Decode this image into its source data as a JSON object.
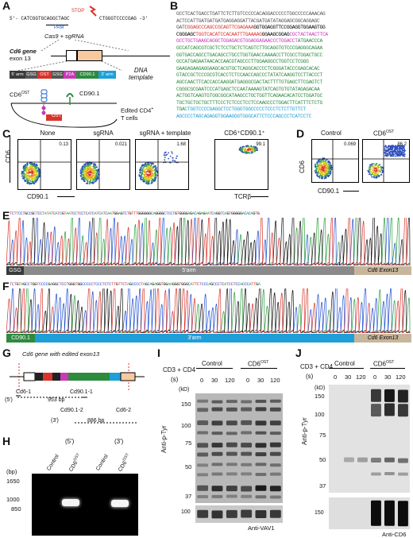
{
  "panels": {
    "A": "A",
    "B": "B",
    "C": "C",
    "D": "D",
    "E": "E",
    "F": "F",
    "G": "G",
    "H": "H",
    "I": "I",
    "J": "J"
  },
  "panelA": {
    "top_seq_left": "5'- CATCGGTGCAGGCTAGC",
    "top_seq_right": "CTGGGTCCCCGAG -3'",
    "stop": "STOP",
    "pam": "PAM",
    "cas9": "Cas9 + sgRNA",
    "gene_label_1": "Cd6 gene",
    "gene_label_2": "exon 13",
    "template_parts": [
      "5' arm",
      "GSG",
      "OST",
      "GSG",
      "P2A",
      "CD90.1",
      "3' arm"
    ],
    "dna_template": [
      "DNA",
      "template"
    ],
    "cd6ost": "CD6",
    "cd6ost_sup": "OST",
    "cd901": "CD90.1",
    "ost": "OST",
    "edited_1": "Edited CD4",
    "edited_sup": "+",
    "edited_2": "T cells"
  },
  "panelB": {
    "lines": [
      [
        {
          "t": "GCCTCACTGACCTGATTCTCTTGTCCCCCACAGGACCCCCTGGCCCCCAAACAG",
          "c": "#555"
        }
      ],
      [
        {
          "t": "ACTCCATTGATGATGATGAGGAGGATTACGATGATATAGGAGCGGCAGGAGC",
          "c": "#555"
        },
        {
          "t": "",
          "c": "#000"
        }
      ],
      [
        {
          "t": "GATC",
          "c": "#555"
        },
        {
          "t": "GGAGCCCAGCCGCAGTTCGAGAAA",
          "c": "#d8342c"
        },
        {
          "t": "GGTGGAGGTTCCGGAGGTGGAAGTGG",
          "c": "#000"
        }
      ],
      [
        {
          "t": "CGGGAGC",
          "c": "#000"
        },
        {
          "t": "TGGTCACATCCACAATTTGAAAAG",
          "c": "#d8342c"
        },
        {
          "t": "GGAAGCGGAG",
          "c": "#000"
        },
        {
          "t": "CGCTACTAACTTCA",
          "c": "#c83ab8"
        }
      ],
      [
        {
          "t": "GCCTGCTGAAGCAGGCTGGAGACGTGGAGGAGAACCCTGGACCT",
          "c": "#c83ab8"
        },
        {
          "t": "ATGAACCCA",
          "c": "#2e8b3e"
        }
      ],
      [
        {
          "t": "GCCATCAGCGTCGCTCTCCTGCTCTCAGTCTTGCAGGTGTCCCGAGGGCAGAA",
          "c": "#2e8b3e"
        }
      ],
      [
        {
          "t": "GGTGACCAGCCTGACAGCCTGCCTGGTGAACCAAAACCTTCGCCTGGACTGCC",
          "c": "#2e8b3e"
        }
      ],
      [
        {
          "t": "GCCATGAGAATAACACCAACGTAGCCCTTGGAAGGCCTGGTCCTCGGG",
          "c": "#2e8b3e"
        }
      ],
      [
        {
          "t": "GAAGAGAAGAGGAAGCACGTGCTCAGGCACCCCTCGGGATACCCGAGCACAC",
          "c": "#2e8b3e"
        }
      ],
      [
        {
          "t": "GTACCGCTCCCGCGTCACCTCTCCAACCAGCCCTATATCAAGGTCCTTACCCT",
          "c": "#2e8b3e"
        }
      ],
      [
        {
          "t": "AGCCAACTTCACCACCAAGGATGAGGGCGACTACTTTTGTGAGCTTCGAGTCT",
          "c": "#2e8b3e"
        }
      ],
      [
        {
          "t": "CGGGCGCGAATCCCATGAGCTCCAATAAAAGTATCAGTGTGTATAGAGACAA",
          "c": "#2e8b3e"
        }
      ],
      [
        {
          "t": "ACTGGTCAAGTGTGGCGGCATAAGCCTGCTGGTTCAGAACACATCCTGGATGC",
          "c": "#2e8b3e"
        }
      ],
      [
        {
          "t": "TGCTGCTGCTGCTTTCCCTCTCCCTCCTCCAAGCCCTGGACTTCATTTCTCTG",
          "c": "#2e8b3e"
        }
      ],
      [
        {
          "t": "TGA",
          "c": "#2e8b3e"
        },
        {
          "t": "CTGGTCCCCGAGGCTCCTGGGTGGCCCCCTCCCTCTCTTGTTCT",
          "c": "#1e9fd8"
        }
      ],
      [
        {
          "t": "AGCCCCTAGCAGAGGTGGAAGGGTGGGCATTCTCCCAGCCCTCATCCTC",
          "c": "#1e9fd8"
        }
      ]
    ]
  },
  "panelC": {
    "titles": [
      "None",
      "sgRNA",
      "sgRNA + template",
      "CD6⁺CD90.1⁺"
    ],
    "values": [
      "0.13",
      "0.021",
      "1.68",
      "99.1"
    ],
    "ylabel": "CD6",
    "xlabel": "CD90.1",
    "xlabel4": "TCRβ",
    "zero": "0"
  },
  "panelD": {
    "titles": [
      "Control",
      "CD6"
    ],
    "title_sup": "OST",
    "values": [
      "0.069",
      "86.2"
    ],
    "ylabel": "CD6",
    "xlabel": "CD90.1",
    "zero": "0"
  },
  "panelE": {
    "seq": "TCTTCCTGCCGCTCCTATATCATCGTAATCCTCCTCATCATCATCAATGGAGTCTGTTTGGGGGGCAGGGGCTCCTGTGGGGAGACAGAGAATCAGGTCAGTGGGGGACACAGTG",
    "bar": [
      {
        "t": "GSG",
        "c": "#3a3a3a",
        "w": 22
      },
      {
        "t": "5'arm",
        "c": "#8a8a8a",
        "w": 416
      },
      {
        "t": "Cd6 Exon13",
        "c": "#c8b69c",
        "w": 72
      }
    ]
  },
  "panelF": {
    "seq": "TCTGTAGCCTGGTCCCCGAGGCTCCTGGGTGGCCCCCTCCCTCTCTTGTTCTAGCCCCTAGCAGAGGTGGAAGGGTGGGCATTCTCCCAGCCCTCATCCTCCACCCATTGA",
    "bar": [
      {
        "t": "CD90.1",
        "c": "#2e8b3e",
        "w": 36
      },
      {
        "t": "3'arm",
        "c": "#1e9fd8",
        "w": 402
      },
      {
        "t": "Cd6 Exon13",
        "c": "#c8b69c",
        "w": 72
      }
    ]
  },
  "panelG": {
    "title": "Cd6 gene with edited exon13",
    "cd6_1": "Cd6-1",
    "cd901_1": "Cd90.1-1",
    "five": "(5')",
    "bp953": "953 bp",
    "cd901_2": "Cd90.1-2",
    "cd6_2": "Cd6-2",
    "three": "(3')",
    "bp886": "886 bp"
  },
  "panelH": {
    "five": "(5')",
    "three": "(3')",
    "lanes": [
      "Control",
      "CD6",
      "Control",
      "CD6"
    ],
    "lane_sup": "OST",
    "bp": "(bp)",
    "ladder": [
      "1650",
      "1000",
      "850"
    ]
  },
  "panelI": {
    "cd3cd4": "CD3 + CD4",
    "s": "(s)",
    "control": "Control",
    "cd6ost": "CD6",
    "sup": "OST",
    "times": [
      "0",
      "30",
      "120",
      "0",
      "30",
      "120"
    ],
    "kd": "(kD)",
    "markers": [
      "150",
      "100",
      "75",
      "50",
      "37"
    ],
    "marker2": "100",
    "ylabel": "Anti-p-Tyr",
    "bottom": "Anti-VAV1"
  },
  "panelJ": {
    "cd3cd4": "CD3 + CD4",
    "s": "(s)",
    "control": "Control",
    "cd6ost": "CD6",
    "sup": "OST",
    "times": [
      "0",
      "30",
      "120",
      "0",
      "30",
      "120"
    ],
    "kd": "(kD)",
    "markers": [
      "150",
      "100",
      "75",
      "50",
      "37"
    ],
    "marker2": "150",
    "ylabel": "Anti-p-Tyr",
    "bottom": "Anti-CD6"
  },
  "colors": {
    "ost_red": "#d8342c",
    "p2a_magenta": "#c83ab8",
    "cd90_green": "#2e8b3e",
    "arm3_blue": "#1e9fd8",
    "gsg_dark": "#3a3a3a",
    "exon_tan": "#c8b69c"
  }
}
